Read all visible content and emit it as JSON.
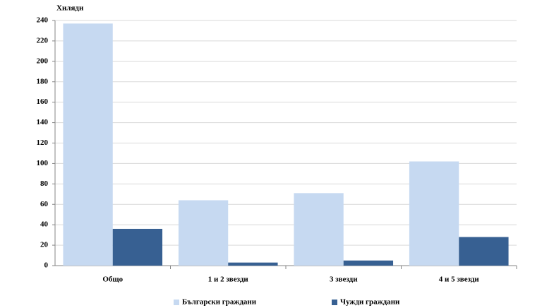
{
  "chart_data": {
    "type": "bar",
    "y_label": "Хиляди",
    "categories": [
      "Общо",
      "1 и 2 звезди",
      "3 звезди",
      "4 и 5 звезди"
    ],
    "series": [
      {
        "name": "Български граждани",
        "color": "#c6d9f1",
        "values": [
          237,
          64,
          71,
          102
        ]
      },
      {
        "name": "Чужди граждани",
        "color": "#376092",
        "values": [
          36,
          3,
          5,
          28
        ]
      }
    ],
    "ylim": [
      0,
      240
    ],
    "yticks": [
      0,
      20,
      40,
      60,
      80,
      100,
      120,
      140,
      160,
      180,
      200,
      220,
      240
    ],
    "grid": true,
    "legend": "bottom"
  }
}
